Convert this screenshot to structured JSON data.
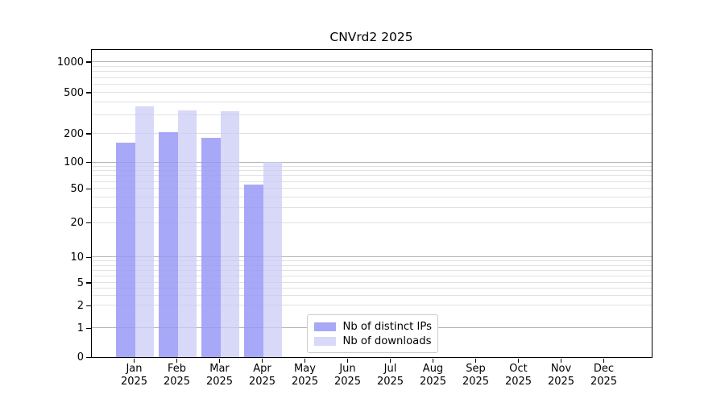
{
  "chart_data": {
    "type": "bar",
    "title": "CNVrd2 2025",
    "year": "2025",
    "categories": [
      "Jan",
      "Feb",
      "Mar",
      "Apr",
      "May",
      "Jun",
      "Jul",
      "Aug",
      "Sep",
      "Oct",
      "Nov",
      "Dec"
    ],
    "series": [
      {
        "name": "Nb of distinct IPs",
        "color": "#a8a8f8",
        "values": [
          160,
          205,
          178,
          55,
          null,
          null,
          null,
          null,
          null,
          null,
          null,
          null
        ]
      },
      {
        "name": "Nb of downloads",
        "color": "#d8d8f8",
        "values": [
          365,
          335,
          330,
          100,
          null,
          null,
          null,
          null,
          null,
          null,
          null,
          null
        ]
      }
    ],
    "y_ticks": [
      0,
      1,
      2,
      5,
      10,
      20,
      50,
      100,
      200,
      500,
      1000
    ],
    "y_scale": "log-like (linear 0-1, logarithmic above)",
    "ylim": [
      0,
      1500
    ],
    "grid": {
      "major_values": [
        1,
        10,
        100,
        1000
      ],
      "major_color": "#c4c4c4",
      "minor_color": "#eaeaea"
    },
    "legend": {
      "position": "lower center",
      "border_color": "#cbcbcb"
    },
    "colors": {
      "axis": "#000000",
      "background": "#ffffff",
      "text": "#000000"
    }
  }
}
